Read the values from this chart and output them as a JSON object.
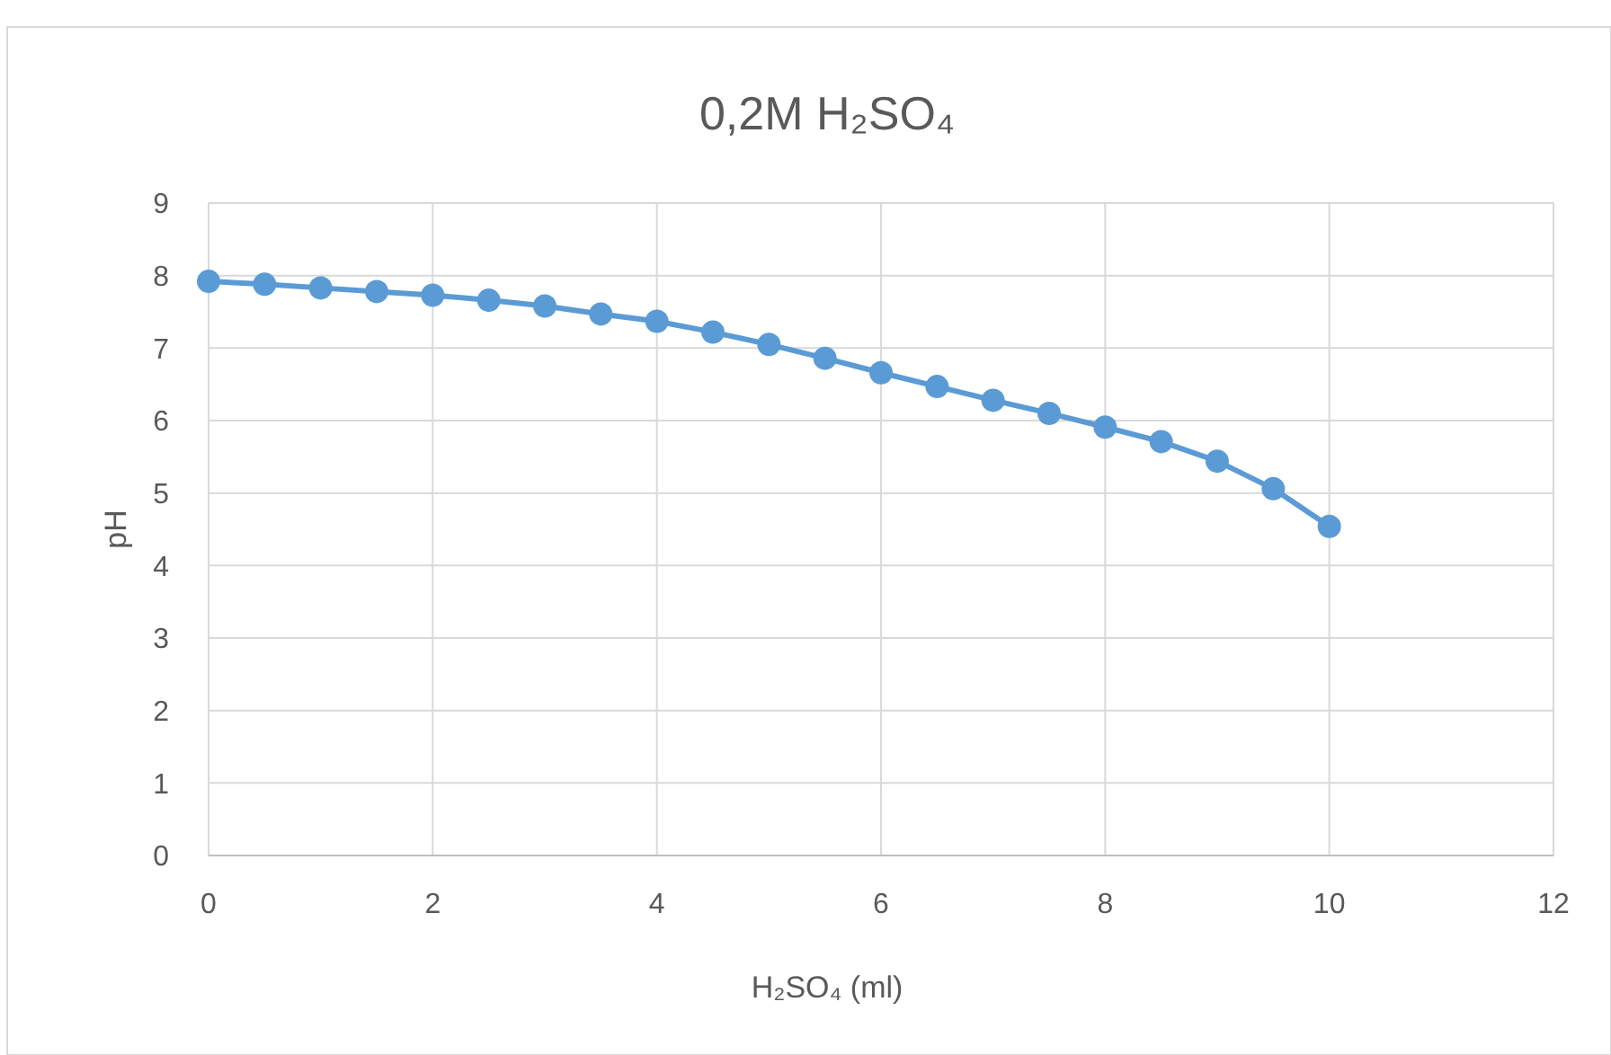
{
  "chart_data": {
    "type": "line",
    "title": "0,2M  H₂SO₄",
    "xlabel": "H₂SO₄ (ml)",
    "ylabel": "pH",
    "x": [
      0,
      0.5,
      1,
      1.5,
      2,
      2.5,
      3,
      3.5,
      4,
      4.5,
      5,
      5.5,
      6,
      6.5,
      7,
      7.5,
      8,
      8.5,
      9,
      9.5,
      10
    ],
    "series": [
      {
        "color": "#5b9bd5",
        "values": [
          7.92,
          7.88,
          7.83,
          7.78,
          7.73,
          7.66,
          7.58,
          7.47,
          7.37,
          7.22,
          7.05,
          6.86,
          6.66,
          6.47,
          6.28,
          6.1,
          5.91,
          5.71,
          5.44,
          5.06,
          4.54
        ]
      }
    ],
    "xlim": [
      0,
      12
    ],
    "xticks": [
      0,
      2,
      4,
      6,
      8,
      10,
      12
    ],
    "ylim": [
      0,
      9
    ],
    "yticks": [
      0,
      1,
      2,
      3,
      4,
      5,
      6,
      7,
      8,
      9
    ],
    "grid": true,
    "marker": "circle",
    "line_style": "solid"
  }
}
